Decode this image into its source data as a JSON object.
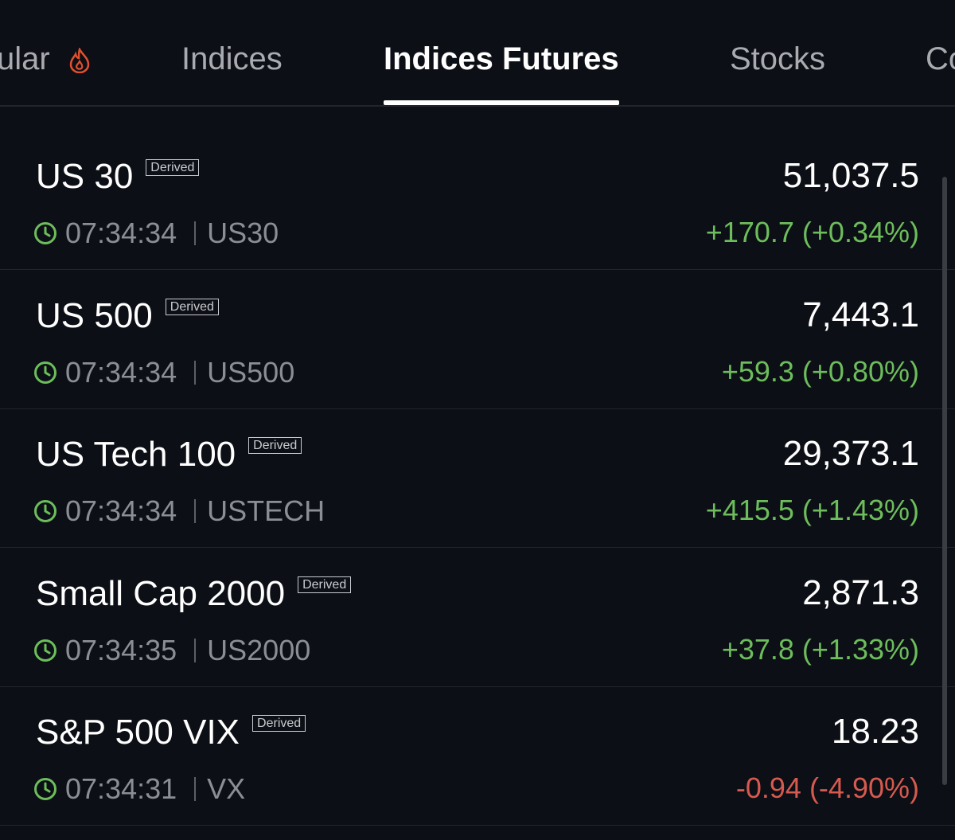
{
  "tabs": [
    {
      "label": "ular",
      "active": false
    },
    {
      "label": "Indices",
      "active": false
    },
    {
      "label": "Indices Futures",
      "active": true
    },
    {
      "label": "Stocks",
      "active": false
    },
    {
      "label": "Co",
      "active": false
    }
  ],
  "rows": [
    {
      "name": "US 30",
      "badge": "Derived",
      "time": "07:34:34",
      "symbol": "US30",
      "price": "51,037.5",
      "change": "+170.7 (+0.34%)",
      "color": "#6dbd5c"
    },
    {
      "name": "US 500",
      "badge": "Derived",
      "time": "07:34:34",
      "symbol": "US500",
      "price": "7,443.1",
      "change": "+59.3 (+0.80%)",
      "color": "#6dbd5c"
    },
    {
      "name": "US Tech 100",
      "badge": "Derived",
      "time": "07:34:34",
      "symbol": "USTECH",
      "price": "29,373.1",
      "change": "+415.5 (+1.43%)",
      "color": "#6dbd5c"
    },
    {
      "name": "Small Cap 2000",
      "badge": "Derived",
      "time": "07:34:35",
      "symbol": "US2000",
      "price": "2,871.3",
      "change": "+37.8 (+1.33%)",
      "color": "#6dbd5c"
    },
    {
      "name": "S&P 500 VIX",
      "badge": "Derived",
      "time": "07:34:31",
      "symbol": "VX",
      "price": "18.23",
      "change": "-0.94 (-4.90%)",
      "color": "#d65a4f"
    }
  ]
}
